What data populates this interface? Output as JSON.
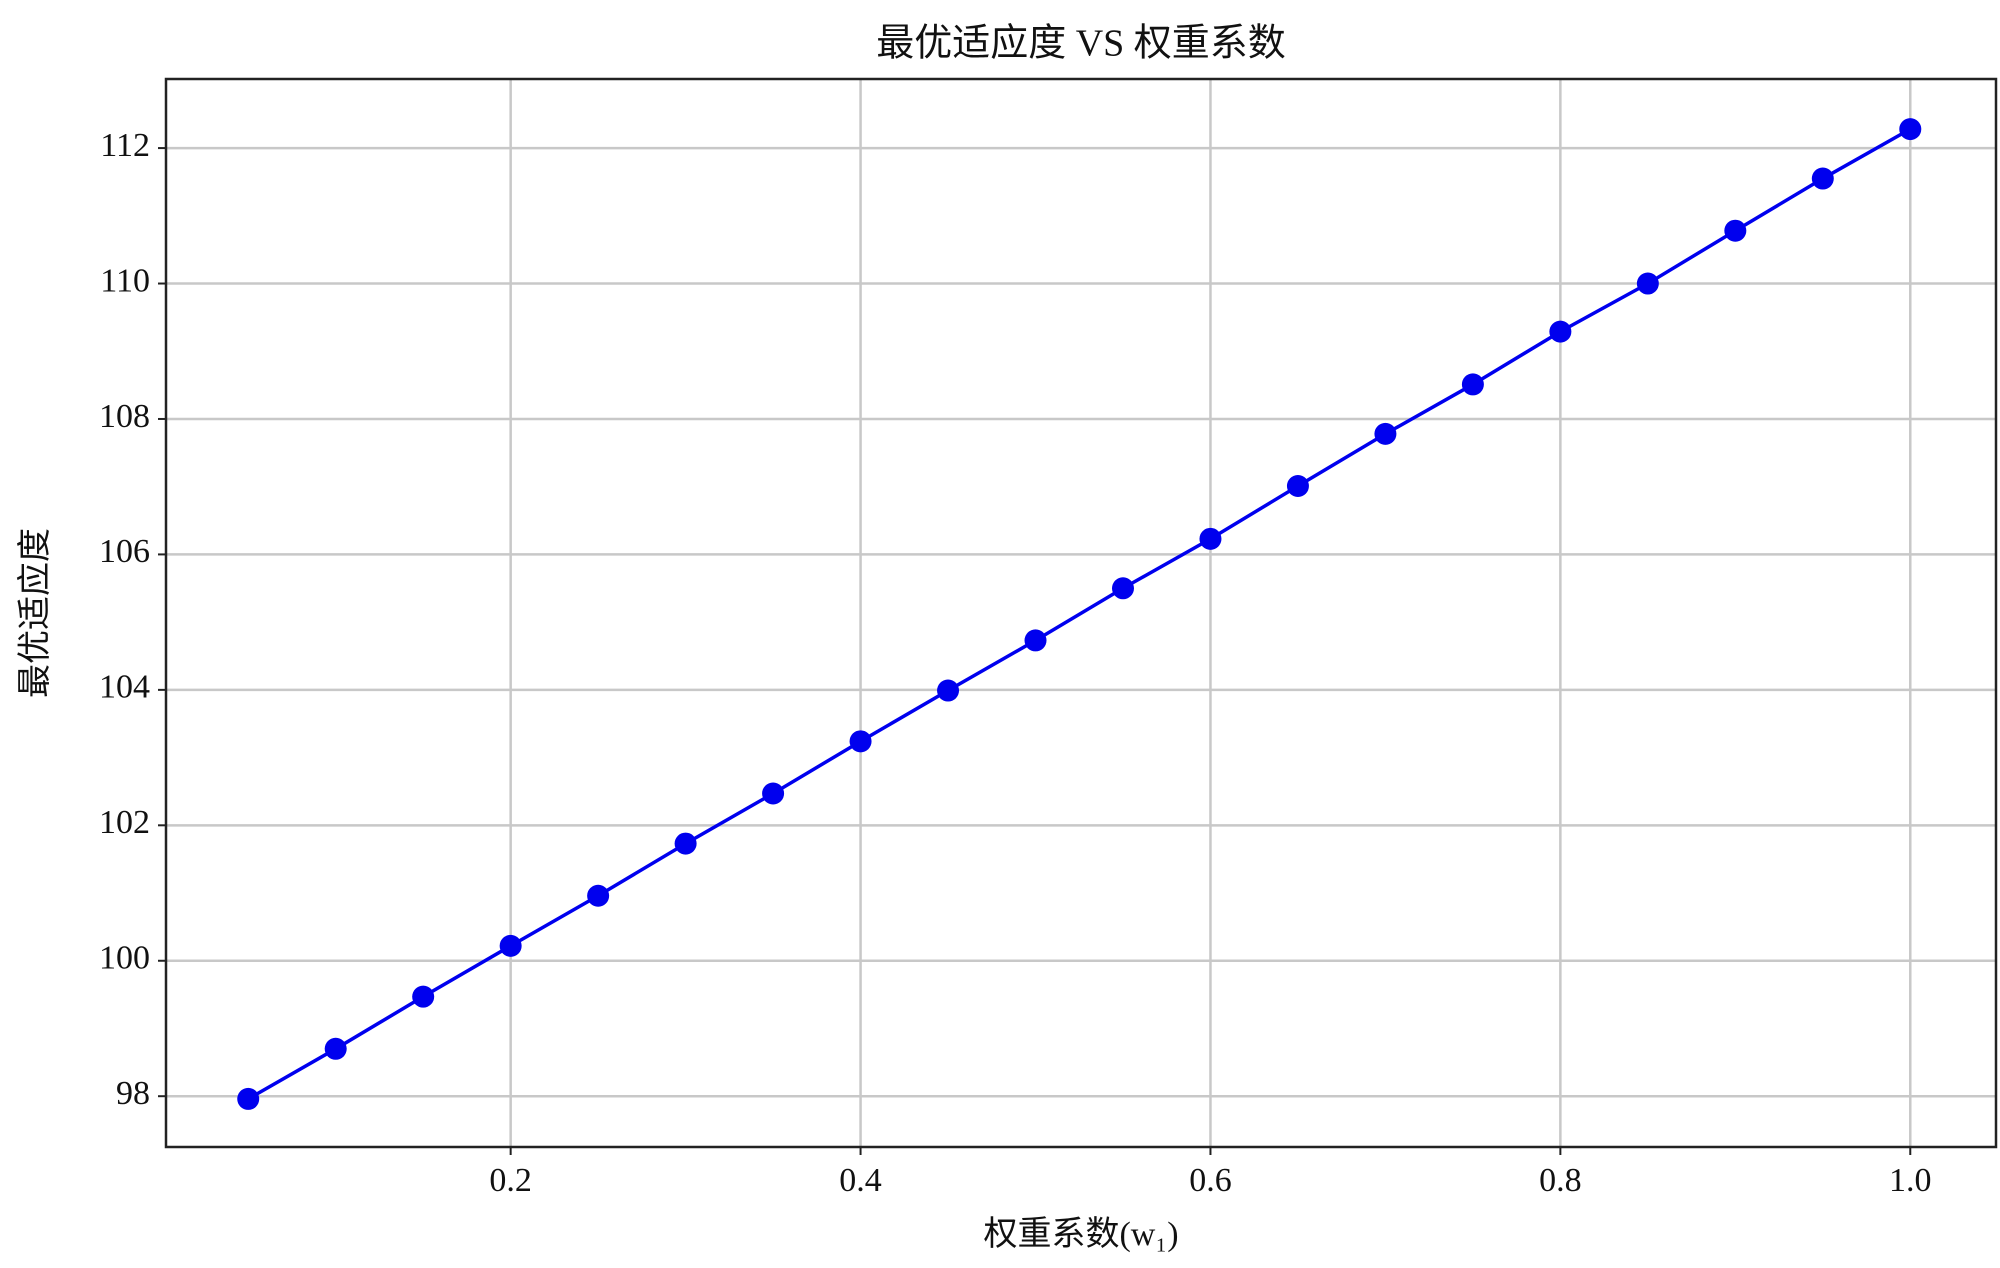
{
  "chart_data": {
    "type": "line",
    "title": "最优适应度 VS 权重系数",
    "xlabel": "权重系数(w₁)",
    "ylabel": "最优适应度",
    "x": [
      0.05,
      0.1,
      0.15,
      0.2,
      0.25,
      0.3,
      0.35,
      0.4,
      0.45,
      0.5,
      0.55,
      0.6,
      0.65,
      0.7,
      0.75,
      0.8,
      0.85,
      0.9,
      0.95,
      1.0
    ],
    "series": [
      {
        "name": "最优适应度",
        "color": "#0000ee",
        "values": [
          97.96,
          98.7,
          99.47,
          100.22,
          100.96,
          101.73,
          102.47,
          103.24,
          103.99,
          104.73,
          105.5,
          106.23,
          107.01,
          107.78,
          108.51,
          109.29,
          110.0,
          110.78,
          111.55,
          112.28
        ]
      }
    ],
    "xlim": [
      0.003,
      1.049
    ],
    "ylim": [
      97.25,
      113.02
    ],
    "xticks": [
      0.2,
      0.4,
      0.6,
      0.8,
      {
        "value": 1,
        "label": "1.0"
      }
    ],
    "yticks": [
      98,
      100,
      102,
      104,
      106,
      108,
      110,
      112
    ],
    "grid": true
  }
}
